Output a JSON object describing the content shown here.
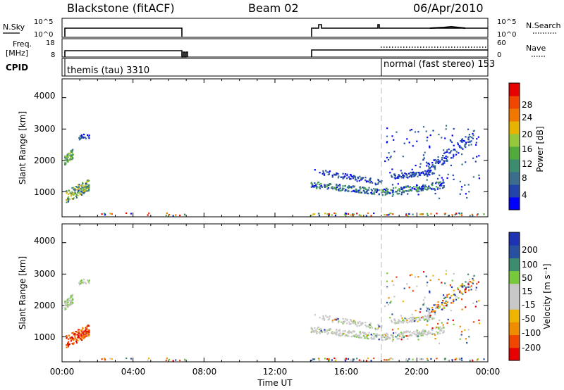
{
  "header": {
    "title": "Blackstone (fitACF)",
    "beam": "Beam 02",
    "date": "06/Apr/2010"
  },
  "nsky_panel": {
    "label": "N.Sky",
    "right_label": "N.Search",
    "ticks_left": [
      "10^5",
      "10^0"
    ],
    "ticks_right": [
      "10^5",
      "10^0"
    ]
  },
  "freq_panel": {
    "label_line1": "Freq.",
    "label_line2": "[MHz]",
    "right_label": "Nave",
    "ticks_left": [
      "18",
      "8"
    ],
    "ticks_right": [
      "60",
      "0"
    ]
  },
  "cpid_panel": {
    "label": "CPID",
    "modes": [
      {
        "text": "themis (tau) 3310",
        "start": 0.0
      },
      {
        "text": "normal (fast stereo) 153",
        "start": 18.0
      }
    ]
  },
  "time_axis": {
    "title": "Time UT",
    "ticks": [
      "00:00",
      "04:00",
      "08:00",
      "12:00",
      "16:00",
      "20:00",
      "00:00"
    ],
    "range": [
      0,
      24
    ]
  },
  "chart_data": [
    {
      "type": "heatmap",
      "ylabel": "Slant Range [km]",
      "yticks": [
        "1000",
        "2000",
        "3000",
        "4000"
      ],
      "ylim": [
        200,
        4600
      ],
      "colorbar": {
        "label": "Power [dB]",
        "ticks": [
          "4",
          "8",
          "12",
          "16",
          "20",
          "24",
          "28"
        ],
        "colors": [
          "#0000ff",
          "#2244aa",
          "#3a6e8c",
          "#3c8c6e",
          "#50aa3c",
          "#96c83c",
          "#e6b400",
          "#f07800",
          "#f04600",
          "#e60000"
        ]
      }
    },
    {
      "type": "heatmap",
      "ylabel": "Slant Range [km]",
      "yticks": [
        "1000",
        "2000",
        "3000",
        "4000"
      ],
      "ylim": [
        200,
        4600
      ],
      "colorbar": {
        "label": "Velocity [m s⁻¹]",
        "ticks": [
          "200",
          "100",
          "50",
          "15",
          "-15",
          "-50",
          "-100",
          "-200"
        ],
        "colors": [
          "#1e32b4",
          "#2850a0",
          "#3c8c6e",
          "#78c83c",
          "#c8c8c8",
          "#c8c8c8",
          "#f0b400",
          "#f08c00",
          "#f04600",
          "#e60000"
        ]
      }
    }
  ]
}
